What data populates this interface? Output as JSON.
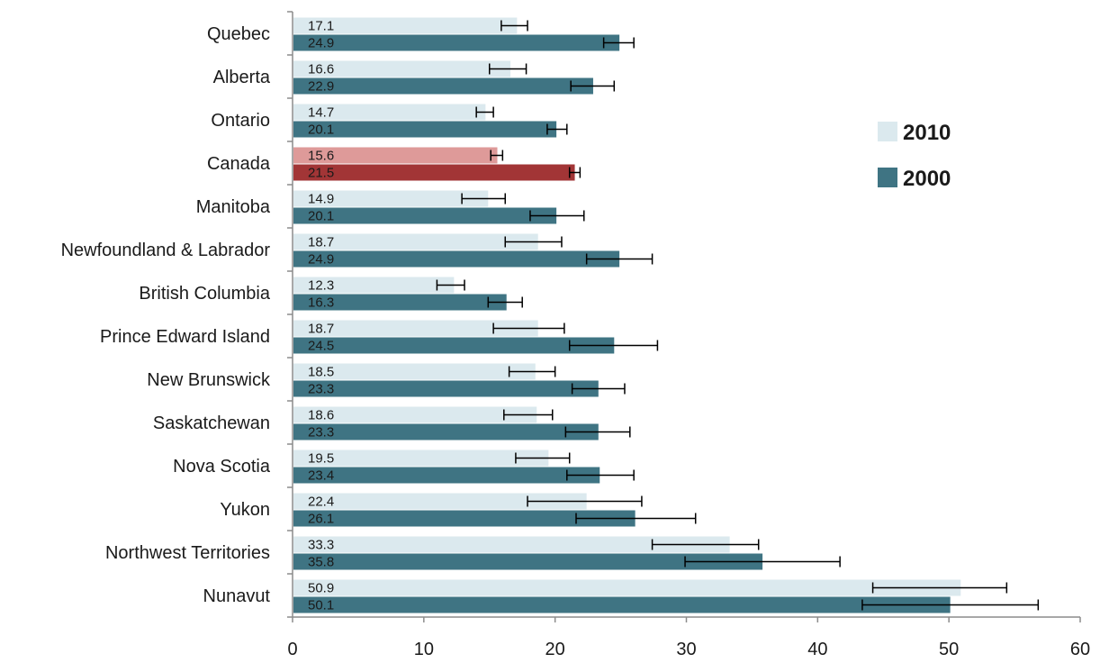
{
  "chart_data": {
    "type": "bar",
    "orientation": "horizontal",
    "categories": [
      "Quebec",
      "Alberta",
      "Ontario",
      "Canada",
      "Manitoba",
      "Newfoundland & Labrador",
      "British Columbia",
      "Prince Edward Island",
      "New Brunswick",
      "Saskatchewan",
      "Nova Scotia",
      "Yukon",
      "Northwest Territories",
      "Nunavut"
    ],
    "series": [
      {
        "name": "2010",
        "color": "#dbe9ee",
        "highlight_color": "#de9a99",
        "values": [
          17.1,
          16.6,
          14.7,
          15.6,
          14.9,
          18.7,
          12.3,
          18.7,
          18.5,
          18.6,
          19.5,
          22.4,
          33.3,
          50.9
        ],
        "error_low": [
          15.9,
          15.0,
          14.0,
          15.1,
          12.9,
          16.2,
          11.0,
          15.3,
          16.5,
          16.1,
          17.0,
          17.9,
          27.4,
          44.2
        ],
        "error_high": [
          17.9,
          17.8,
          15.3,
          16.0,
          16.2,
          20.5,
          13.1,
          20.7,
          20.0,
          19.8,
          21.1,
          26.6,
          35.5,
          54.4
        ],
        "labels": [
          "17.1",
          "16.6",
          "14.7",
          "15.6",
          "14.9",
          "18.7",
          "12.3",
          "18.7",
          "18.5",
          "18.6",
          "19.5",
          "22.4",
          "33.3",
          "50.9"
        ]
      },
      {
        "name": "2000",
        "color": "#3f7483",
        "highlight_color": "#a23536",
        "values": [
          24.9,
          22.9,
          20.1,
          21.5,
          20.1,
          24.9,
          16.3,
          24.5,
          23.3,
          23.3,
          23.4,
          26.1,
          35.8,
          50.1
        ],
        "error_low": [
          23.7,
          21.2,
          19.4,
          21.1,
          18.1,
          22.4,
          14.9,
          21.1,
          21.3,
          20.8,
          20.9,
          21.6,
          29.9,
          43.4
        ],
        "error_high": [
          26.0,
          24.5,
          20.9,
          21.9,
          22.2,
          27.4,
          17.5,
          27.8,
          25.3,
          25.7,
          26.0,
          30.7,
          41.7,
          56.8
        ],
        "labels": [
          "24.9",
          "22.9",
          "20.1",
          "21.5",
          "20.1",
          "24.9",
          "16.3",
          "24.5",
          "23.3",
          "23.3",
          "23.4",
          "26.1",
          "35.8",
          "50.1"
        ]
      }
    ],
    "highlight_category": "Canada",
    "xlim": [
      0,
      60
    ],
    "x_ticks": [
      "0",
      "10",
      "20",
      "30",
      "40",
      "50",
      "60"
    ],
    "title": "",
    "xlabel": "",
    "ylabel": "",
    "grid": false,
    "legend_position": "right"
  }
}
